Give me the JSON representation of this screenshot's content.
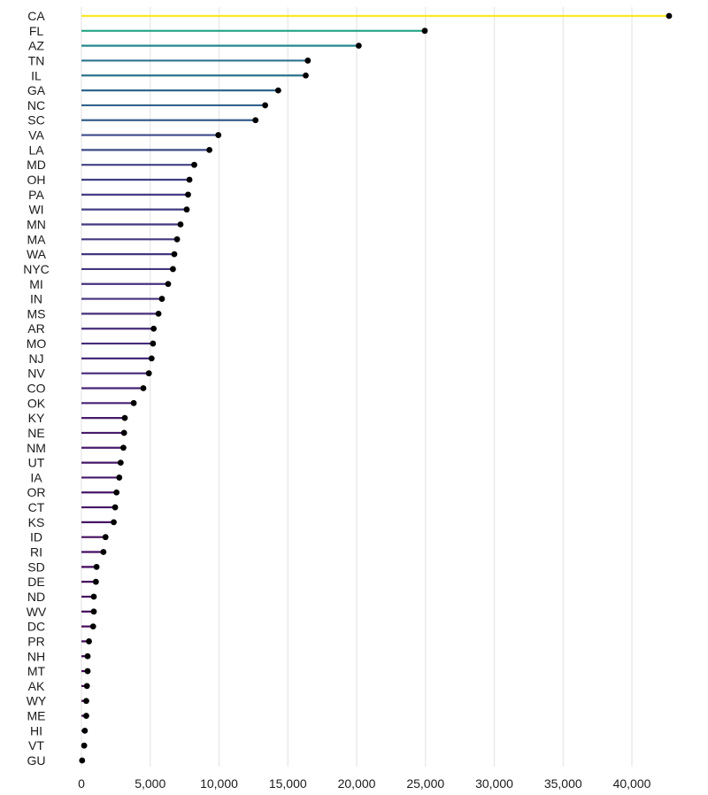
{
  "chart_data": {
    "type": "lollipop",
    "title": "",
    "xlabel": "",
    "ylabel": "",
    "xlim": [
      0,
      42700
    ],
    "grid": "vertical",
    "x_ticks": [
      0,
      5000,
      10000,
      15000,
      20000,
      25000,
      30000,
      35000,
      40000
    ],
    "x_tick_labels": [
      "0",
      "5,000",
      "10,000",
      "15,000",
      "20,000",
      "25,000",
      "30,000",
      "35,000",
      "40,000"
    ],
    "categories": [
      "CA",
      "FL",
      "AZ",
      "TN",
      "IL",
      "GA",
      "NC",
      "SC",
      "VA",
      "LA",
      "MD",
      "OH",
      "PA",
      "WI",
      "MN",
      "MA",
      "WA",
      "NYC",
      "MI",
      "IN",
      "MS",
      "AR",
      "MO",
      "NJ",
      "NV",
      "CO",
      "OK",
      "KY",
      "NE",
      "NM",
      "UT",
      "IA",
      "OR",
      "CT",
      "KS",
      "ID",
      "RI",
      "SD",
      "DE",
      "ND",
      "WV",
      "DC",
      "PR",
      "NH",
      "MT",
      "AK",
      "WY",
      "ME",
      "HI",
      "VT",
      "GU"
    ],
    "values": [
      42700,
      24950,
      20150,
      16450,
      16300,
      14300,
      13350,
      12650,
      9950,
      9300,
      8200,
      7850,
      7750,
      7650,
      7200,
      6950,
      6750,
      6650,
      6300,
      5850,
      5600,
      5250,
      5200,
      5100,
      4900,
      4500,
      3800,
      3150,
      3100,
      3050,
      2850,
      2750,
      2550,
      2450,
      2350,
      1750,
      1600,
      1100,
      1050,
      900,
      900,
      850,
      550,
      450,
      450,
      400,
      350,
      350,
      250,
      200,
      50
    ],
    "color_scale": "viridis",
    "dot_color": "#000000"
  }
}
